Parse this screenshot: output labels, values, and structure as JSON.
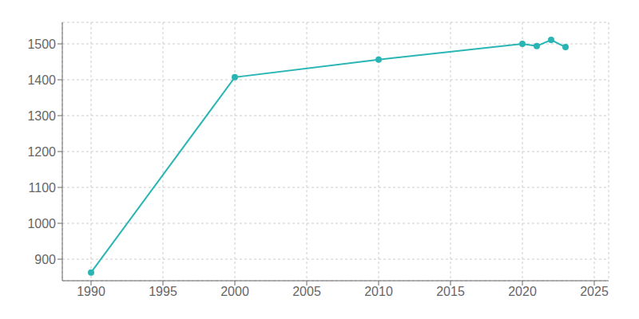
{
  "chart_data": {
    "type": "line",
    "x": [
      1990,
      2000,
      2010,
      2020,
      2021,
      2022,
      2023
    ],
    "values": [
      863,
      1407,
      1456,
      1500,
      1494,
      1511,
      1491
    ],
    "color": "#2ab5b5",
    "marker": "circle",
    "xlim": [
      1988,
      2026
    ],
    "ylim": [
      840,
      1560
    ],
    "xticks": [
      1990,
      1995,
      2000,
      2005,
      2010,
      2015,
      2020,
      2025
    ],
    "yticks": [
      900,
      1000,
      1100,
      1200,
      1300,
      1400,
      1500
    ],
    "grid": true
  }
}
